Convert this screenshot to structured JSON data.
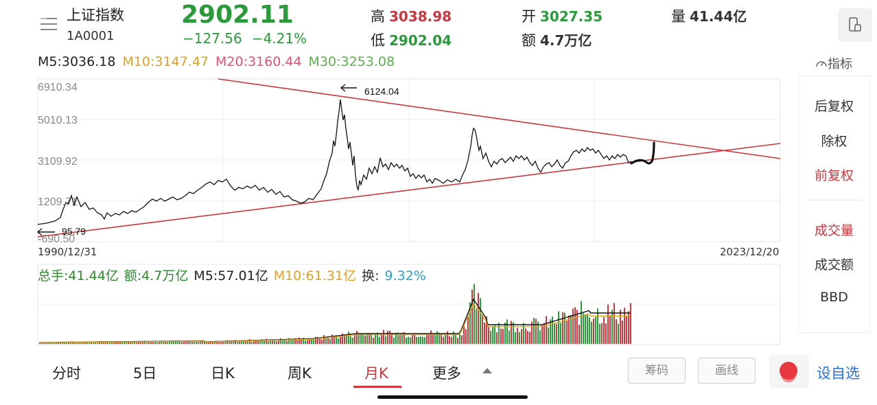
{
  "header": {
    "title": "上证指数",
    "code": "1A0001",
    "price": "2902.11",
    "change": "−127.56",
    "change_pct": "−4.21%",
    "high_label": "高",
    "high_value": "3038.98",
    "low_label": "低",
    "low_value": "2902.04",
    "open_label": "开",
    "open_value": "3027.35",
    "amount_label": "额",
    "amount_value": "4.7万亿",
    "volume_label": "量",
    "volume_value": "41.44亿"
  },
  "ma": {
    "m5": "M5:3036.18",
    "m10": "M10:3147.47",
    "m20": "M20:3160.44",
    "m30": "M30:3253.08"
  },
  "indicator_label": "指标",
  "main_chart": {
    "y_ticks": [
      "6910.34",
      "5010.13",
      "3109.92",
      "1209.71",
      "-690.50"
    ],
    "annotation_high": "6124.04",
    "annotation_low": "95.79",
    "date_start": "1990/12/31",
    "date_end": "2023/12/20"
  },
  "volume": {
    "total": "总手:41.44亿",
    "amount": "额:4.7万亿",
    "m5": "M5:57.01亿",
    "m10": "M10:61.31亿",
    "turnover_label": "换:",
    "turnover_value": "9.32%"
  },
  "side_panel": [
    "后复权",
    "除权",
    "前复权",
    "成交量",
    "成交额",
    "BBD"
  ],
  "tabs": [
    "分时",
    "5日",
    "日K",
    "周K",
    "月K",
    "更多"
  ],
  "active_tab": "月K",
  "buttons": {
    "chips": "筹码",
    "draw": "画线",
    "add_favorite": "设自选"
  },
  "colors": {
    "up": "#c8383e",
    "down": "#2b9a3a",
    "ma5": "#222222",
    "ma10": "#e0a020",
    "ma20": "#e0507a",
    "ma30": "#5ab04a",
    "turnover": "#2aa0c8",
    "link": "#2a73d6"
  },
  "icons": [
    "menu-icon",
    "device-icon",
    "indicator-icon",
    "arrow-left-icon",
    "caret-up-icon"
  ]
}
